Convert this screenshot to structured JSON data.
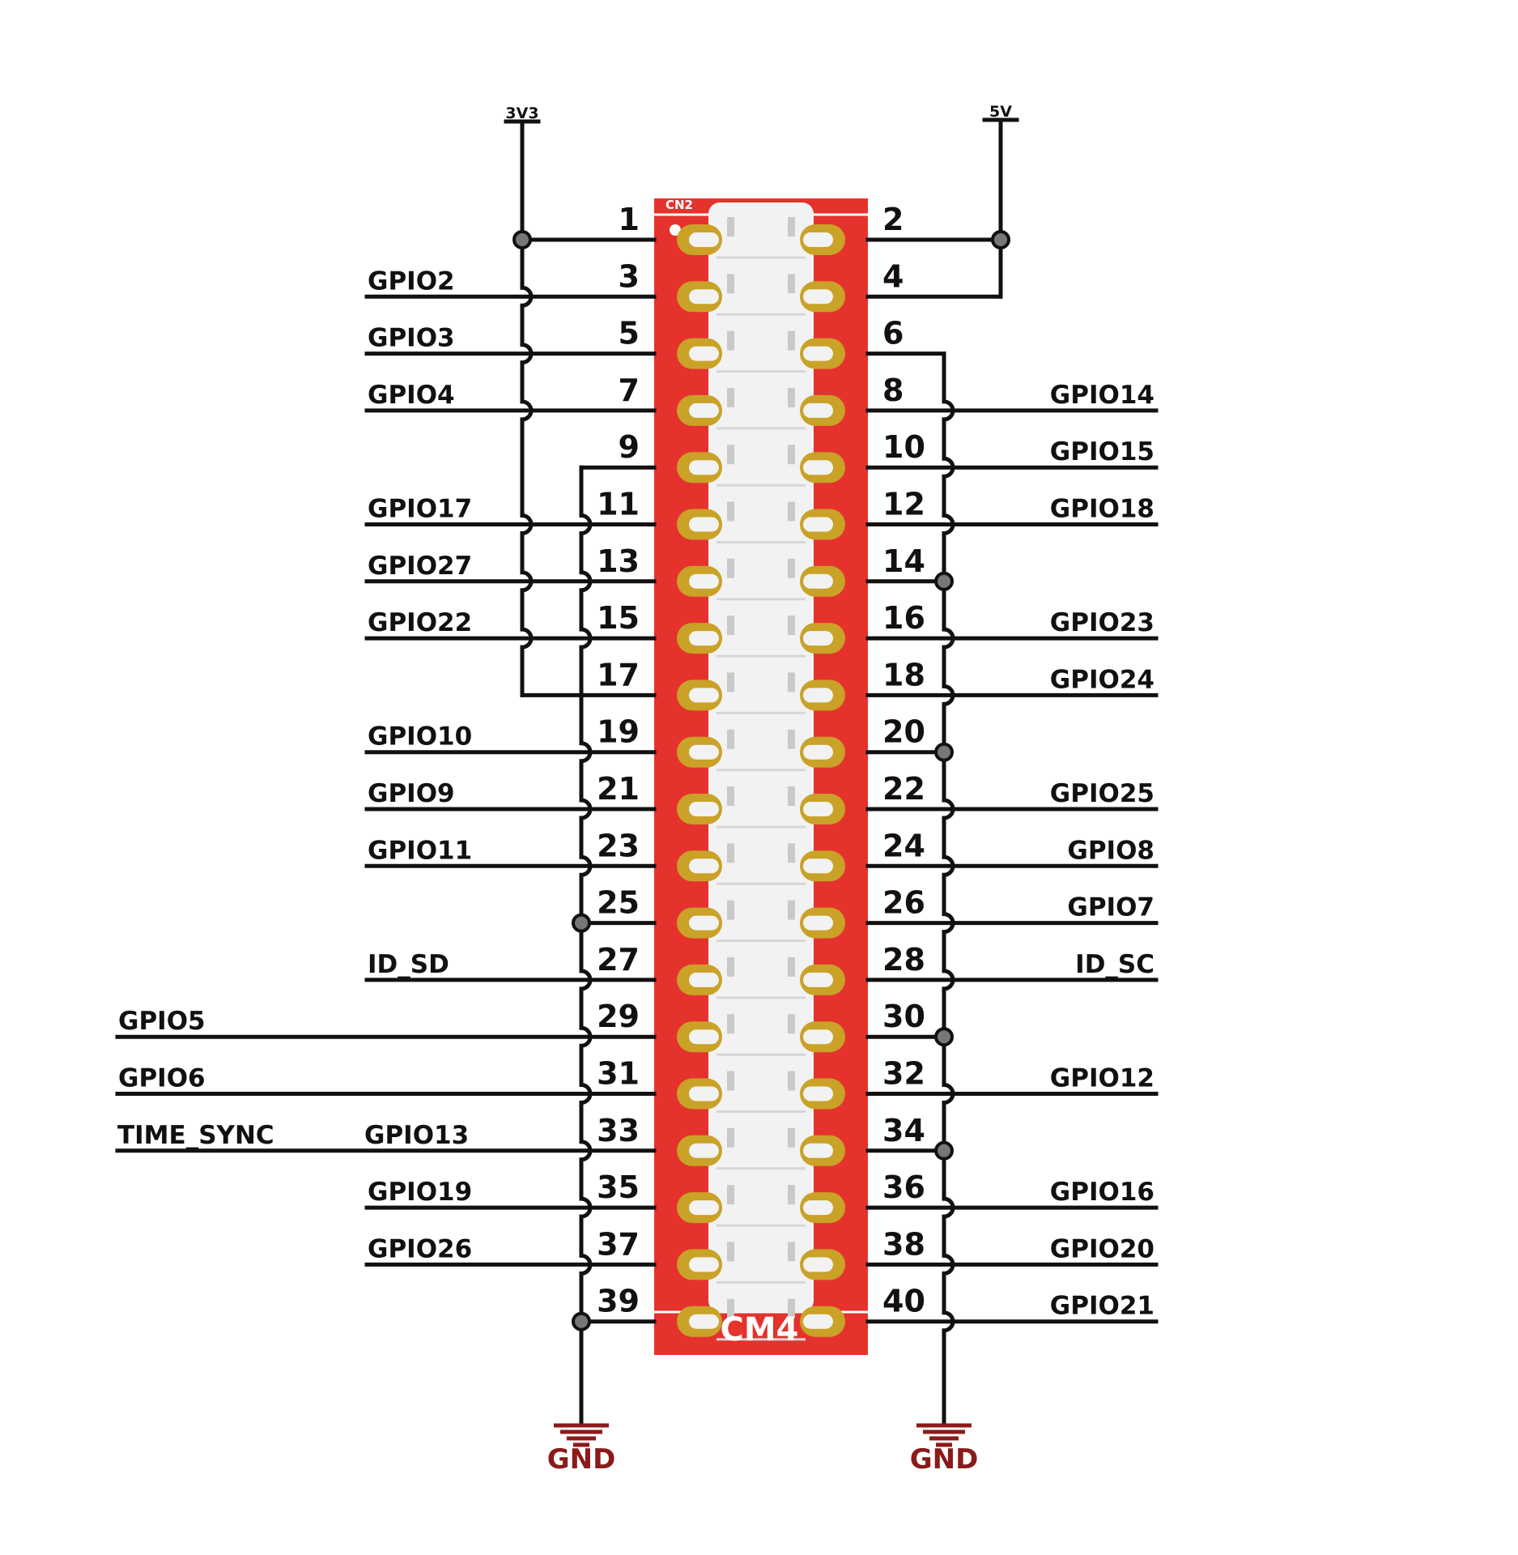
{
  "header": {
    "connector_marking": "CN2",
    "board_label": "CM4"
  },
  "rails": {
    "left": "3V3",
    "right": "5V"
  },
  "ground": {
    "left": "GND",
    "right": "GND"
  },
  "colors": {
    "board": "#e5322d",
    "pad": "#c9a227",
    "housing": "#f2f2f2",
    "wire": "#111111",
    "ground": "#8b1a1a"
  },
  "pins": [
    {
      "num": "1",
      "signal": ""
    },
    {
      "num": "2",
      "signal": ""
    },
    {
      "num": "3",
      "signal": "GPIO2"
    },
    {
      "num": "4",
      "signal": ""
    },
    {
      "num": "5",
      "signal": "GPIO3"
    },
    {
      "num": "6",
      "signal": ""
    },
    {
      "num": "7",
      "signal": "GPIO4"
    },
    {
      "num": "8",
      "signal": "GPIO14"
    },
    {
      "num": "9",
      "signal": ""
    },
    {
      "num": "10",
      "signal": "GPIO15"
    },
    {
      "num": "11",
      "signal": "GPIO17"
    },
    {
      "num": "12",
      "signal": "GPIO18"
    },
    {
      "num": "13",
      "signal": "GPIO27"
    },
    {
      "num": "14",
      "signal": ""
    },
    {
      "num": "15",
      "signal": "GPIO22"
    },
    {
      "num": "16",
      "signal": "GPIO23"
    },
    {
      "num": "17",
      "signal": ""
    },
    {
      "num": "18",
      "signal": "GPIO24"
    },
    {
      "num": "19",
      "signal": "GPIO10"
    },
    {
      "num": "20",
      "signal": ""
    },
    {
      "num": "21",
      "signal": "GPIO9"
    },
    {
      "num": "22",
      "signal": "GPIO25"
    },
    {
      "num": "23",
      "signal": "GPIO11"
    },
    {
      "num": "24",
      "signal": "GPIO8"
    },
    {
      "num": "25",
      "signal": ""
    },
    {
      "num": "26",
      "signal": "GPIO7"
    },
    {
      "num": "27",
      "signal": "ID_SD"
    },
    {
      "num": "28",
      "signal": "ID_SC"
    },
    {
      "num": "29",
      "signal": "GPIO5"
    },
    {
      "num": "30",
      "signal": ""
    },
    {
      "num": "31",
      "signal": "GPIO6"
    },
    {
      "num": "32",
      "signal": "GPIO12"
    },
    {
      "num": "33",
      "signal": "GPIO13",
      "extra_label": "TIME_SYNC"
    },
    {
      "num": "34",
      "signal": ""
    },
    {
      "num": "35",
      "signal": "GPIO19"
    },
    {
      "num": "36",
      "signal": "GPIO16"
    },
    {
      "num": "37",
      "signal": "GPIO26"
    },
    {
      "num": "38",
      "signal": "GPIO20"
    },
    {
      "num": "39",
      "signal": ""
    },
    {
      "num": "40",
      "signal": "GPIO21"
    }
  ]
}
